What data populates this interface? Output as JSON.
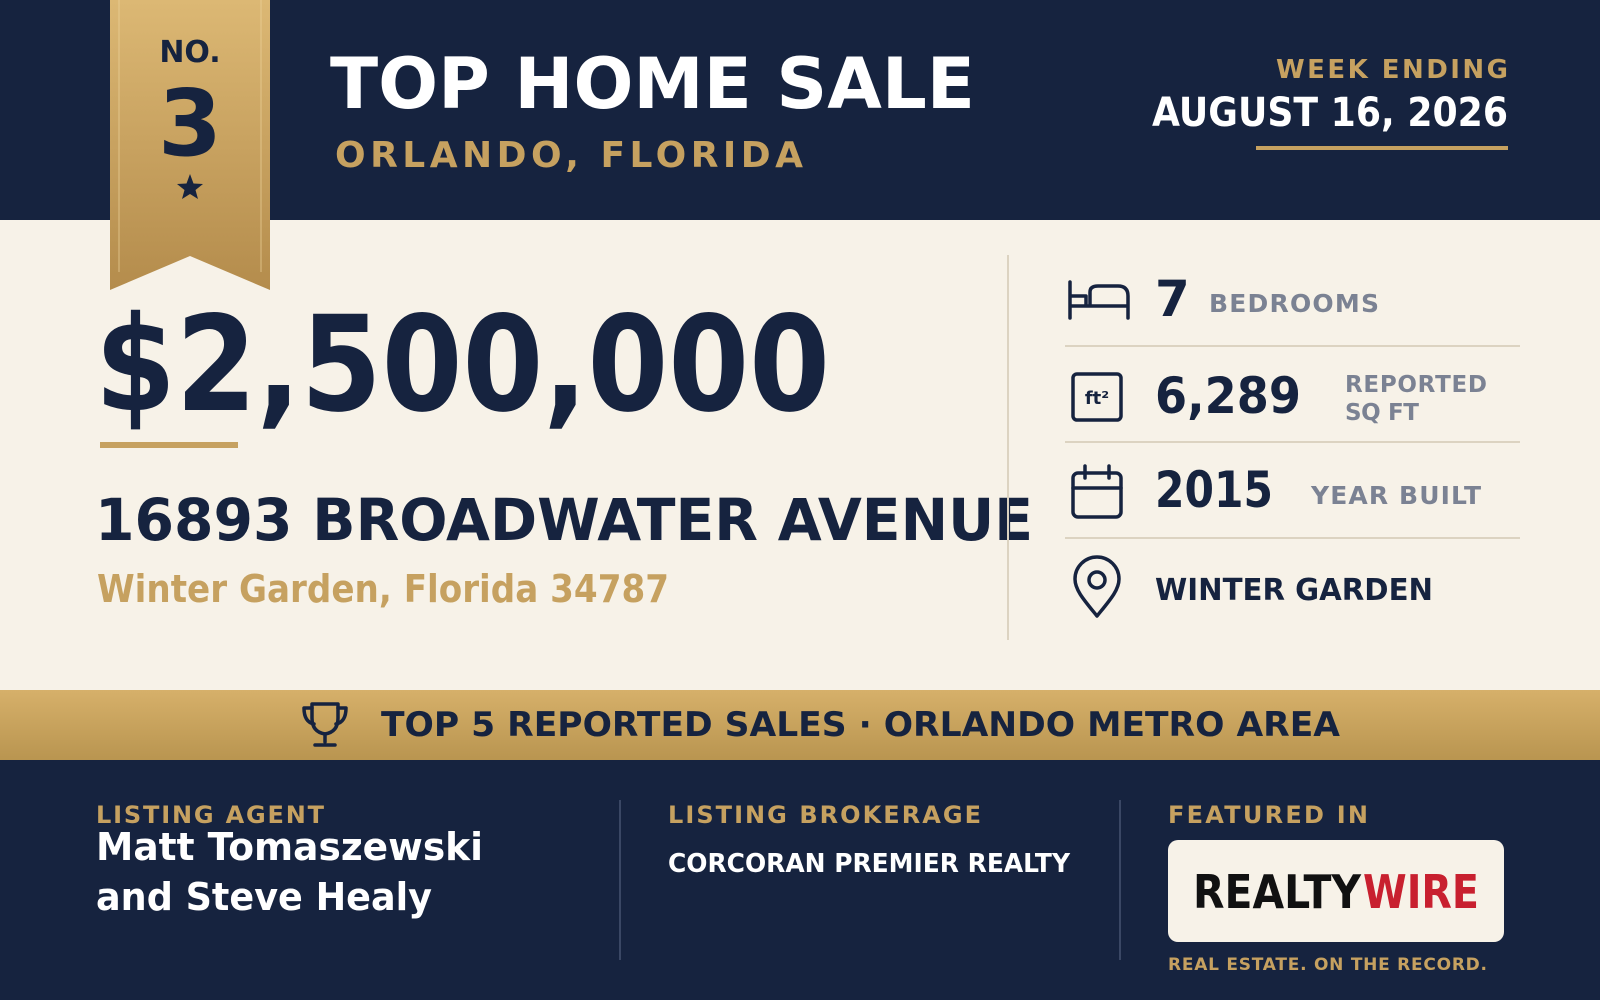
{
  "badge": {
    "prefix": "NO.",
    "rank": "3"
  },
  "header": {
    "title": "TOP HOME SALE",
    "location": "ORLANDO, FLORIDA",
    "week_label": "WEEK ENDING",
    "week_date": "AUGUST 16, 2026"
  },
  "sale": {
    "price": "$2,500,000",
    "address": "16893 BROADWATER AVENUE",
    "city_line": "Winter Garden, Florida 34787"
  },
  "stats": [
    {
      "value": "7",
      "label_lines": [
        "BEDROOMS"
      ]
    },
    {
      "icon_text": "ft²",
      "value": "6,289",
      "label_lines": [
        "REPORTED",
        "SQ FT"
      ]
    },
    {
      "value": "2015",
      "label_lines": [
        "YEAR BUILT"
      ]
    },
    {
      "value": "WINTER GARDEN"
    }
  ],
  "banner": {
    "text": "TOP 5 REPORTED SALES · ORLANDO METRO AREA"
  },
  "footer": {
    "agent_label": "LISTING AGENT",
    "agent_lines": [
      "Matt Tomaszewski",
      "and Steve Healy"
    ],
    "brokerage_label": "LISTING BROKERAGE",
    "brokerage": "CORCORAN PREMIER REALTY",
    "featured_label": "FEATURED IN",
    "logo": {
      "part1": "REALTY",
      "part2": "WIRE"
    },
    "tagline": "REAL ESTATE. ON THE RECORD."
  }
}
